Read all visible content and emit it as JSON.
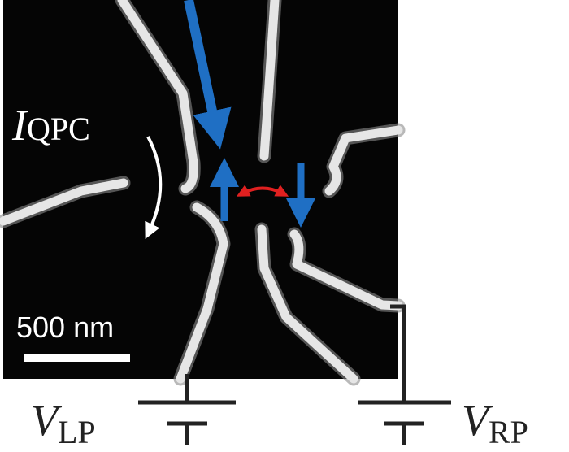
{
  "current_label": {
    "symbol": "I",
    "subscript": "QPC"
  },
  "scale_bar": "500 nm",
  "left_plunger": {
    "symbol": "V",
    "subscript": "LP"
  },
  "right_plunger": {
    "symbol": "V",
    "subscript": "RP"
  }
}
